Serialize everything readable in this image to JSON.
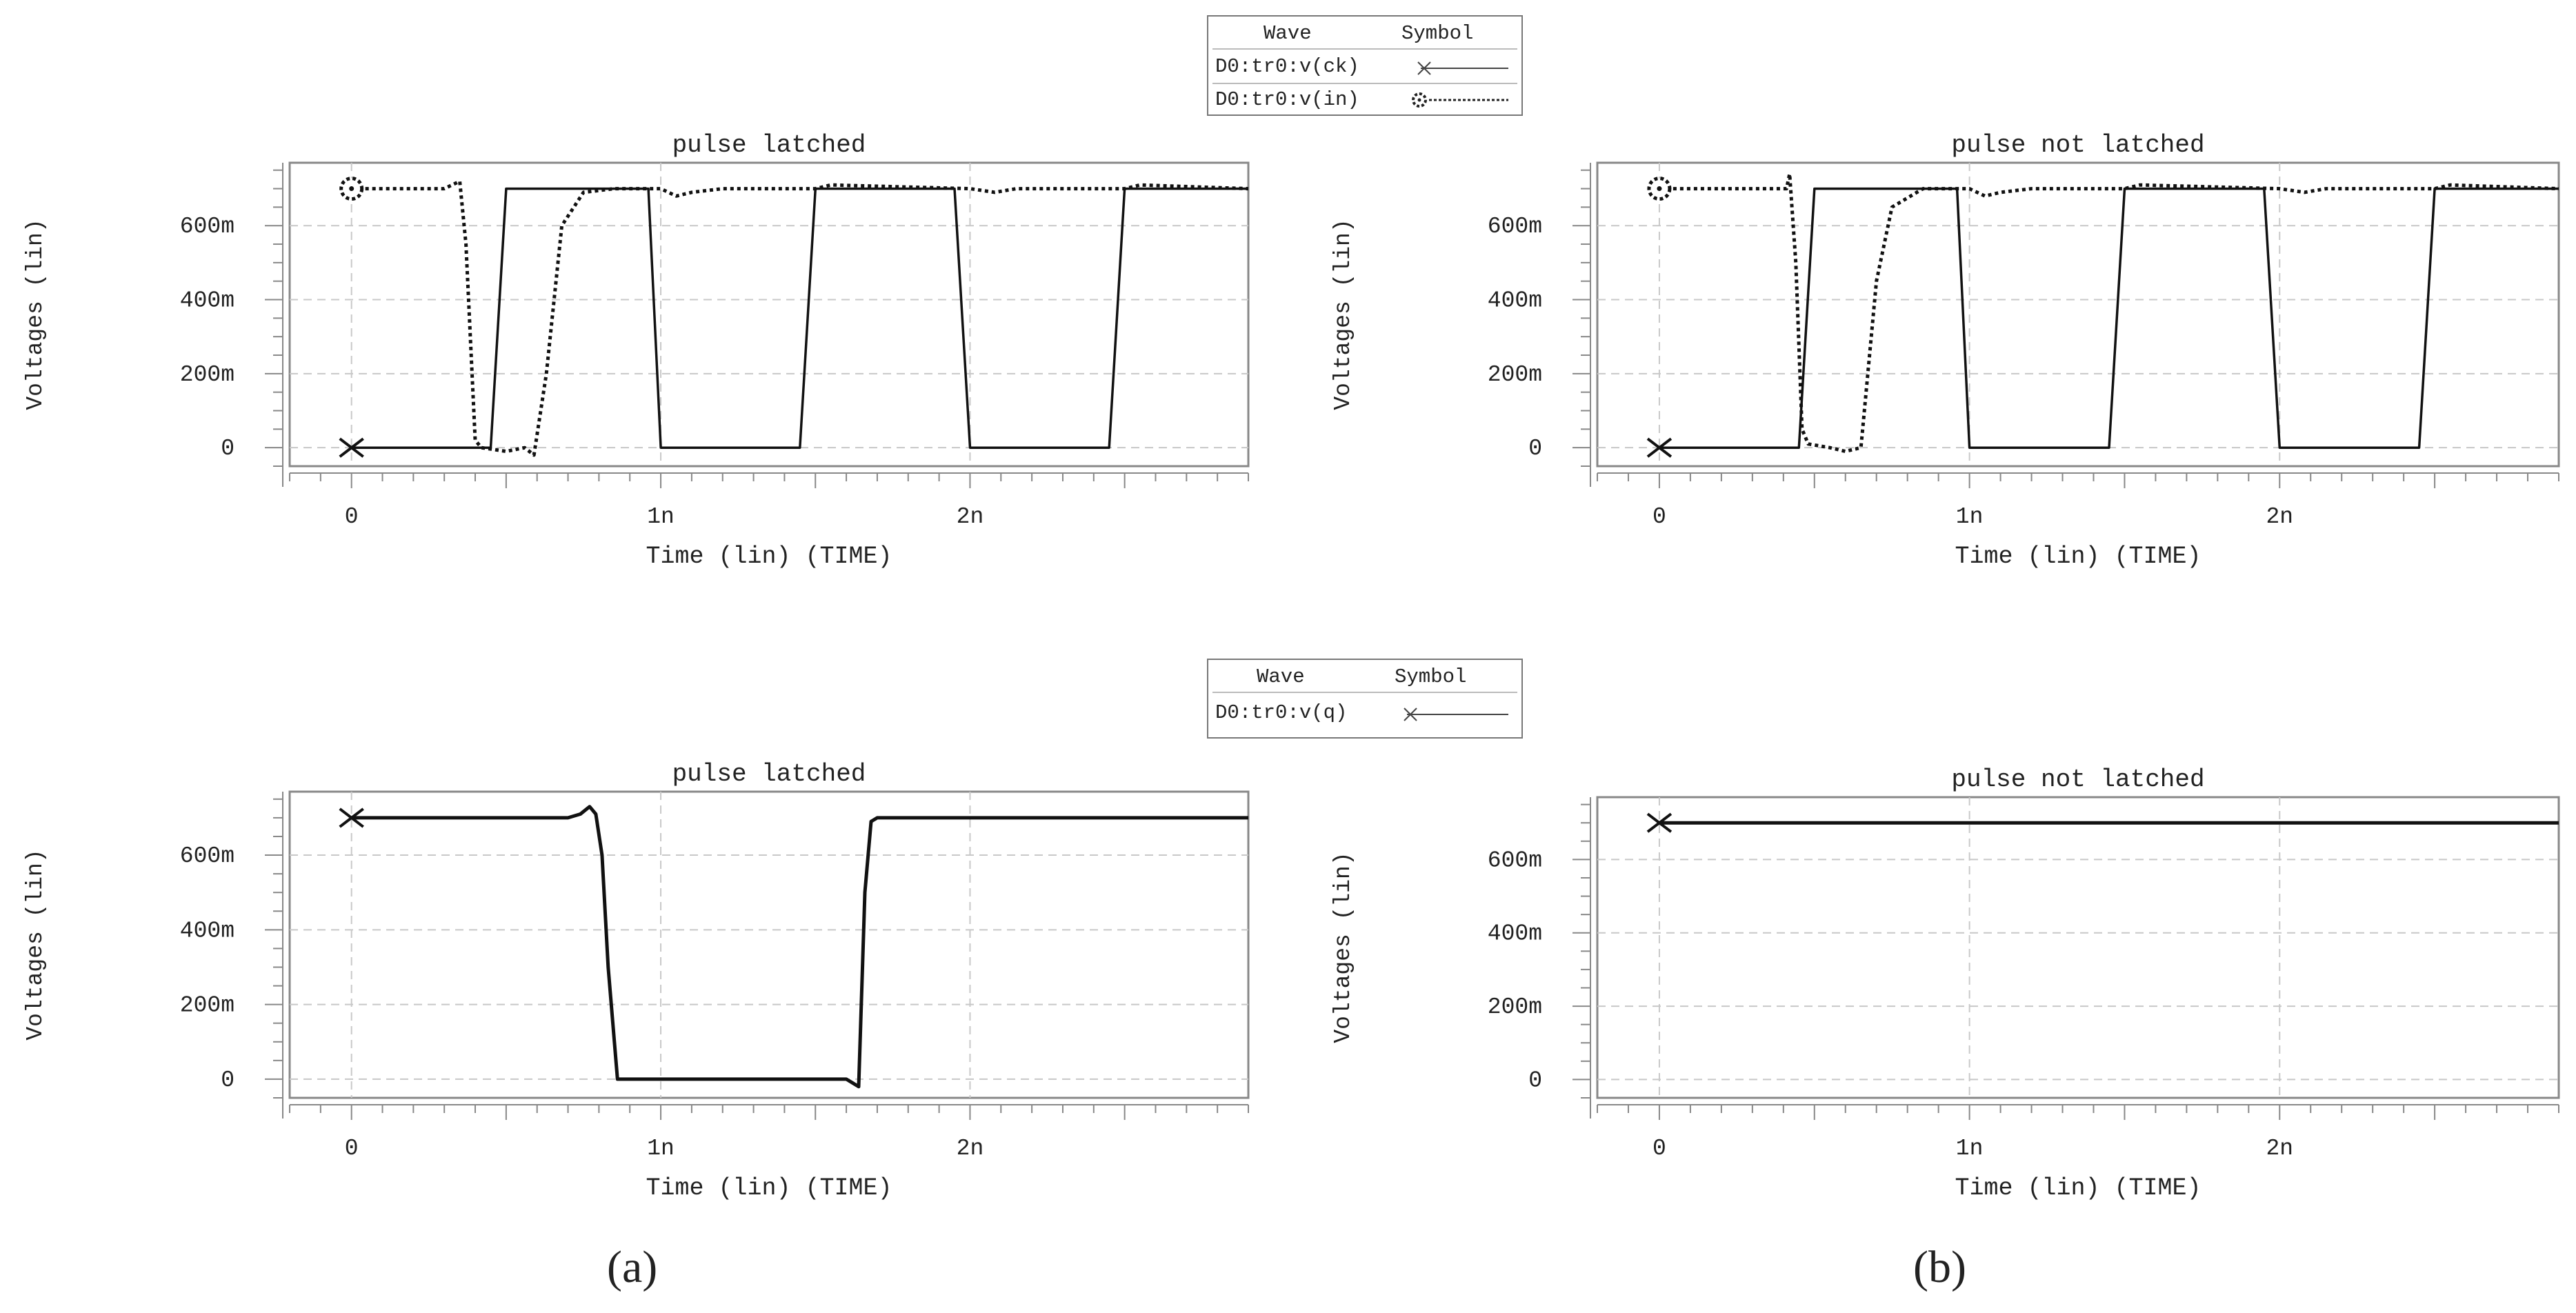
{
  "legends": [
    {
      "header": {
        "wave": "Wave",
        "symbol": "Symbol"
      },
      "rows": [
        {
          "name": "D0:tr0:v(ck)",
          "symbol": "x-solid-line"
        },
        {
          "name": "D0:tr0:v(in)",
          "symbol": "o-dotted-line"
        }
      ]
    },
    {
      "header": {
        "wave": "Wave",
        "symbol": "Symbol"
      },
      "rows": [
        {
          "name": "D0:tr0:v(q)",
          "symbol": "x-solid-line"
        }
      ]
    }
  ],
  "panel_labels": [
    "(a)",
    "(b)"
  ],
  "chart_data": [
    {
      "type": "line",
      "title": "pulse latched",
      "xlabel": "Time (lin) (TIME)",
      "ylabel": "Voltages (lin)",
      "xlim": [
        -2e-10,
        2.9e-09
      ],
      "ylim": [
        -0.05,
        0.77
      ],
      "xticks": [
        {
          "value": 0,
          "label": "0"
        },
        {
          "value": 1e-09,
          "label": "1n"
        },
        {
          "value": 2e-09,
          "label": "2n"
        }
      ],
      "yticks": [
        {
          "value": 0,
          "label": "0"
        },
        {
          "value": 0.2,
          "label": "200m"
        },
        {
          "value": 0.4,
          "label": "400m"
        },
        {
          "value": 0.6,
          "label": "600m"
        }
      ],
      "grid": true,
      "series": [
        {
          "name": "D0:tr0:v(ck)",
          "style": "solid",
          "marker": "x",
          "x": [
            0,
            4.5e-10,
            5e-10,
            9.6e-10,
            1e-09,
            1.45e-09,
            1.5e-09,
            1.95e-09,
            2e-09,
            2.45e-09,
            2.5e-09,
            2.9e-09
          ],
          "y": [
            0,
            0,
            0.7,
            0.7,
            0,
            0,
            0.7,
            0.7,
            0,
            0,
            0.7,
            0.7
          ]
        },
        {
          "name": "D0:tr0:v(in)",
          "style": "dotted",
          "marker": "o",
          "x": [
            0,
            3e-10,
            3.5e-10,
            3.7e-10,
            4e-10,
            4.2e-10,
            5e-10,
            5.6e-10,
            5.9e-10,
            6.3e-10,
            6.8e-10,
            7.5e-10,
            8.5e-10,
            1e-09,
            1.05e-09,
            1.1e-09,
            1.2e-09,
            1.5e-09,
            1.55e-09,
            2e-09,
            2.08e-09,
            2.15e-09,
            2.5e-09,
            2.55e-09,
            2.9e-09
          ],
          "y": [
            0.7,
            0.7,
            0.72,
            0.55,
            0.02,
            0,
            -0.01,
            0,
            -0.02,
            0.2,
            0.6,
            0.69,
            0.7,
            0.7,
            0.68,
            0.69,
            0.7,
            0.7,
            0.71,
            0.7,
            0.69,
            0.7,
            0.7,
            0.71,
            0.7
          ]
        }
      ]
    },
    {
      "type": "line",
      "title": "pulse not latched",
      "xlabel": "Time (lin) (TIME)",
      "ylabel": "Voltages (lin)",
      "xlim": [
        -2e-10,
        2.9e-09
      ],
      "ylim": [
        -0.05,
        0.77
      ],
      "xticks": [
        {
          "value": 0,
          "label": "0"
        },
        {
          "value": 1e-09,
          "label": "1n"
        },
        {
          "value": 2e-09,
          "label": "2n"
        }
      ],
      "yticks": [
        {
          "value": 0,
          "label": "0"
        },
        {
          "value": 0.2,
          "label": "200m"
        },
        {
          "value": 0.4,
          "label": "400m"
        },
        {
          "value": 0.6,
          "label": "600m"
        }
      ],
      "grid": true,
      "series": [
        {
          "name": "D0:tr0:v(ck)",
          "style": "solid",
          "marker": "x",
          "x": [
            0,
            4.5e-10,
            5e-10,
            9.6e-10,
            1e-09,
            1.45e-09,
            1.5e-09,
            1.95e-09,
            2e-09,
            2.45e-09,
            2.5e-09,
            2.9e-09
          ],
          "y": [
            0,
            0,
            0.7,
            0.7,
            0,
            0,
            0.7,
            0.7,
            0,
            0,
            0.7,
            0.7
          ]
        },
        {
          "name": "D0:tr0:v(in)",
          "style": "dotted",
          "marker": "o",
          "x": [
            0,
            4.1e-10,
            4.2e-10,
            4.4e-10,
            4.6e-10,
            4.8e-10,
            5.5e-10,
            6e-10,
            6.5e-10,
            7e-10,
            7.5e-10,
            8.5e-10,
            1e-09,
            1.05e-09,
            1.1e-09,
            1.2e-09,
            1.5e-09,
            1.55e-09,
            2e-09,
            2.08e-09,
            2.15e-09,
            2.5e-09,
            2.55e-09,
            2.9e-09
          ],
          "y": [
            0.7,
            0.7,
            0.74,
            0.5,
            0.05,
            0.01,
            0,
            -0.01,
            0,
            0.45,
            0.65,
            0.7,
            0.7,
            0.68,
            0.69,
            0.7,
            0.7,
            0.71,
            0.7,
            0.69,
            0.7,
            0.7,
            0.71,
            0.7
          ]
        }
      ]
    },
    {
      "type": "line",
      "title": "pulse latched",
      "xlabel": "Time (lin) (TIME)",
      "ylabel": "Voltages (lin)",
      "xlim": [
        -2e-10,
        2.9e-09
      ],
      "ylim": [
        -0.05,
        0.77
      ],
      "xticks": [
        {
          "value": 0,
          "label": "0"
        },
        {
          "value": 1e-09,
          "label": "1n"
        },
        {
          "value": 2e-09,
          "label": "2n"
        }
      ],
      "yticks": [
        {
          "value": 0,
          "label": "0"
        },
        {
          "value": 0.2,
          "label": "200m"
        },
        {
          "value": 0.4,
          "label": "400m"
        },
        {
          "value": 0.6,
          "label": "600m"
        }
      ],
      "grid": true,
      "series": [
        {
          "name": "D0:tr0:v(q)",
          "style": "solid-thick",
          "marker": "x",
          "x": [
            0,
            7e-10,
            7.4e-10,
            7.7e-10,
            7.9e-10,
            8.1e-10,
            8.3e-10,
            8.6e-10,
            1e-09,
            1.6e-09,
            1.62e-09,
            1.64e-09,
            1.66e-09,
            1.68e-09,
            1.7e-09,
            2.9e-09
          ],
          "y": [
            0.7,
            0.7,
            0.71,
            0.73,
            0.71,
            0.6,
            0.3,
            0,
            0,
            0,
            -0.01,
            -0.02,
            0.5,
            0.69,
            0.7,
            0.7
          ]
        }
      ]
    },
    {
      "type": "line",
      "title": "pulse not latched",
      "xlabel": "Time (lin) (TIME)",
      "ylabel": "Voltages (lin)",
      "xlim": [
        -2e-10,
        2.9e-09
      ],
      "ylim": [
        -0.05,
        0.77
      ],
      "xticks": [
        {
          "value": 0,
          "label": "0"
        },
        {
          "value": 1e-09,
          "label": "1n"
        },
        {
          "value": 2e-09,
          "label": "2n"
        }
      ],
      "yticks": [
        {
          "value": 0,
          "label": "0"
        },
        {
          "value": 0.2,
          "label": "200m"
        },
        {
          "value": 0.4,
          "label": "400m"
        },
        {
          "value": 0.6,
          "label": "600m"
        }
      ],
      "grid": true,
      "series": [
        {
          "name": "D0:tr0:v(q)",
          "style": "solid-thick",
          "marker": "x",
          "x": [
            0,
            2.9e-09
          ],
          "y": [
            0.7,
            0.7
          ]
        }
      ]
    }
  ]
}
